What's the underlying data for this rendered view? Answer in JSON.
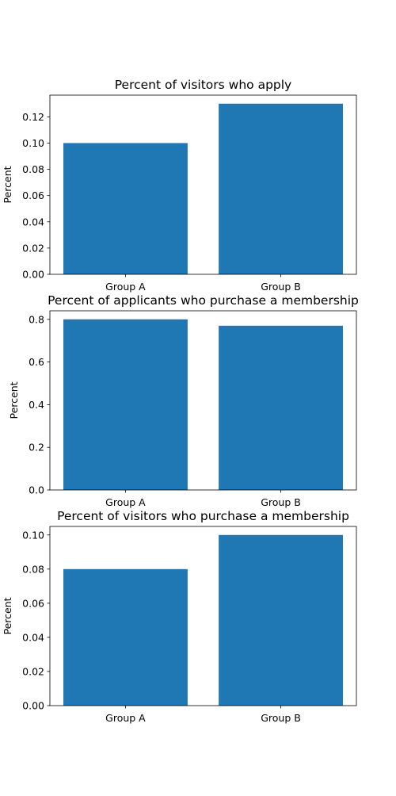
{
  "colors": {
    "bar": "#1f77b4",
    "axis": "#000000",
    "background": "#ffffff"
  },
  "chart_data": [
    {
      "type": "bar",
      "title": "Percent of visitors who apply",
      "xlabel": "",
      "ylabel": "Percent",
      "categories": [
        "Group A",
        "Group B"
      ],
      "values": [
        0.1,
        0.13
      ],
      "ylim": [
        0,
        0.1365
      ],
      "yticks": [
        0.0,
        0.02,
        0.04,
        0.06,
        0.08,
        0.1,
        0.12
      ],
      "ytick_labels": [
        "0.00",
        "0.02",
        "0.04",
        "0.06",
        "0.08",
        "0.10",
        "0.12"
      ],
      "grid": false
    },
    {
      "type": "bar",
      "title": "Percent of applicants who purchase a membership",
      "xlabel": "",
      "ylabel": "Percent",
      "categories": [
        "Group A",
        "Group B"
      ],
      "values": [
        0.8,
        0.77
      ],
      "ylim": [
        0,
        0.84
      ],
      "yticks": [
        0.0,
        0.2,
        0.4,
        0.6,
        0.8
      ],
      "ytick_labels": [
        "0.0",
        "0.2",
        "0.4",
        "0.6",
        "0.8"
      ],
      "grid": false
    },
    {
      "type": "bar",
      "title": "Percent of visitors who purchase a membership",
      "xlabel": "",
      "ylabel": "Percent",
      "categories": [
        "Group A",
        "Group B"
      ],
      "values": [
        0.08,
        0.1
      ],
      "ylim": [
        0,
        0.105
      ],
      "yticks": [
        0.0,
        0.02,
        0.04,
        0.06,
        0.08,
        0.1
      ],
      "ytick_labels": [
        "0.00",
        "0.02",
        "0.04",
        "0.06",
        "0.08",
        "0.10"
      ],
      "grid": false
    }
  ]
}
